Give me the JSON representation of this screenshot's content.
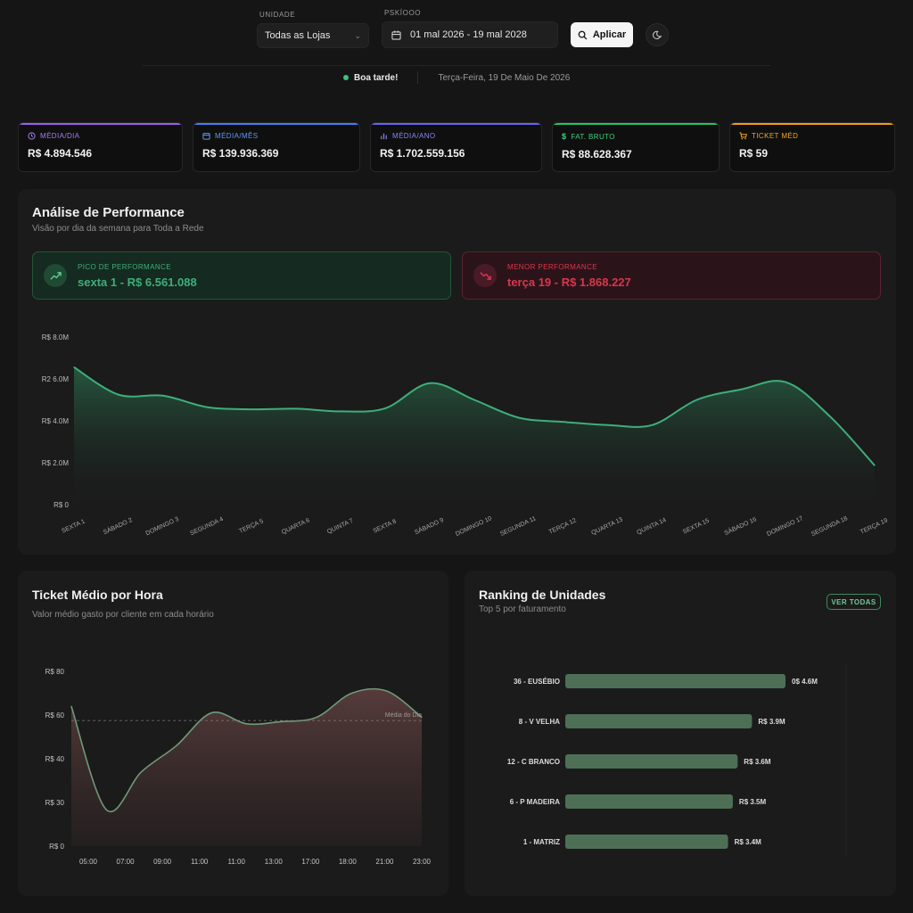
{
  "filters": {
    "unidade_label": "UNIDADE",
    "unidade_value": "Todas as Lojas",
    "periodo_label": "PSKÍOOO",
    "periodo_value": "01 mal 2026 - 19 mal 2028",
    "apply_label": "Aplicar"
  },
  "greeting": {
    "hello": "Boa tarde!",
    "date": "Terça-Feira, 19 De Maio De 2026"
  },
  "kpis": [
    {
      "label": "MÉDIA/DIA",
      "value": "R$ 4.894.546",
      "color": "#9b5cf2",
      "icon": "clock-icon"
    },
    {
      "label": "MÉDIA/MÊS",
      "value": "R$ 139.936.369",
      "color": "#3b82f6",
      "icon": "calendar-icon"
    },
    {
      "label": "MÉDIA/ANO",
      "value": "R$ 1.702.559.156",
      "color": "#6366f1",
      "icon": "bar-chart-icon"
    },
    {
      "label": "FAT. BRUTO",
      "value": "R$ 88.628.367",
      "color": "#22c55e",
      "icon": "dollar-icon"
    },
    {
      "label": "TICKET MÉD",
      "value": "R$ 59",
      "color": "#f59e0b",
      "icon": "cart-icon"
    }
  ],
  "performance": {
    "title": "Análise de Performance",
    "subtitle": "Visão por dia da semana para Toda a Rede",
    "peak_label": "PICO DE PERFORMANCE",
    "peak_value": "sexta 1 - R$ 6.561.088",
    "low_label": "MENOR PERFORMANCE",
    "low_value": "terça 19 - R$ 1.868.227"
  },
  "ticket": {
    "title": "Ticket Médio por Hora",
    "subtitle": "Valor médio gasto por cliente em cada horário",
    "avg_label": "Média do Dia"
  },
  "ranking": {
    "title": "Ranking de Unidades",
    "subtitle": "Top 5 por faturamento",
    "button": "VER TODAS"
  },
  "colors": {
    "green": "#3fae7a",
    "red": "#e0334f",
    "rose": "#7a5a5a"
  },
  "chart_data": [
    {
      "type": "area",
      "name": "performance",
      "categories": [
        "SEXTA 1",
        "SÁBADO 2",
        "DOMINGO 3",
        "SEGUNDA 4",
        "TERÇA 5",
        "QUARTA 6",
        "QUINTA 7",
        "SEXTA 8",
        "SÁBADO 9",
        "DOMINGO 10",
        "SEGUNDA 11",
        "TERÇA 12",
        "QUARTA 13",
        "QUINTA 14",
        "SEXTA 15",
        "SÁBADO 16",
        "DOMINGO 17",
        "SEGUNDA 18",
        "TERÇA 19"
      ],
      "values": [
        6.56,
        5.25,
        5.2,
        4.65,
        4.55,
        4.58,
        4.45,
        4.6,
        5.8,
        5.0,
        4.15,
        3.95,
        3.8,
        3.8,
        5.0,
        5.5,
        5.85,
        4.2,
        1.87
      ],
      "y_ticks": [
        "R$ 0",
        "R$ 2.0M",
        "R$ 4.0M",
        "R2 6.0M",
        "R$ 8.0M"
      ],
      "ylim": [
        0,
        8
      ],
      "grid": false
    },
    {
      "type": "area",
      "name": "ticket",
      "x_ticks": [
        "05:00",
        "07:00",
        "09:00",
        "11:00",
        "11:00",
        "13:00",
        "17:00",
        "18:00",
        "21:00",
        "23:00"
      ],
      "values": [
        64,
        25,
        37,
        46,
        61,
        56,
        57,
        59,
        70,
        71,
        59
      ],
      "average": 57.5,
      "y_ticks": [
        "R$ 0",
        "R$ 30",
        "R$ 40",
        "R$ 60",
        "R$ 80"
      ],
      "grid": false
    },
    {
      "type": "bar",
      "name": "ranking",
      "categories": [
        "36 - EUSÉBIO",
        "8 - V VELHA",
        "12 - C BRANCO",
        "6 - P MADEIRA",
        "1 - MATRIZ"
      ],
      "values": [
        4.6,
        3.9,
        3.6,
        3.5,
        3.4
      ],
      "value_labels": [
        "0$ 4.6M",
        "R$ 3.9M",
        "R$ 3.6M",
        "R$ 3.5M",
        "R$ 3.4M"
      ],
      "xlim": [
        0,
        6
      ]
    }
  ]
}
